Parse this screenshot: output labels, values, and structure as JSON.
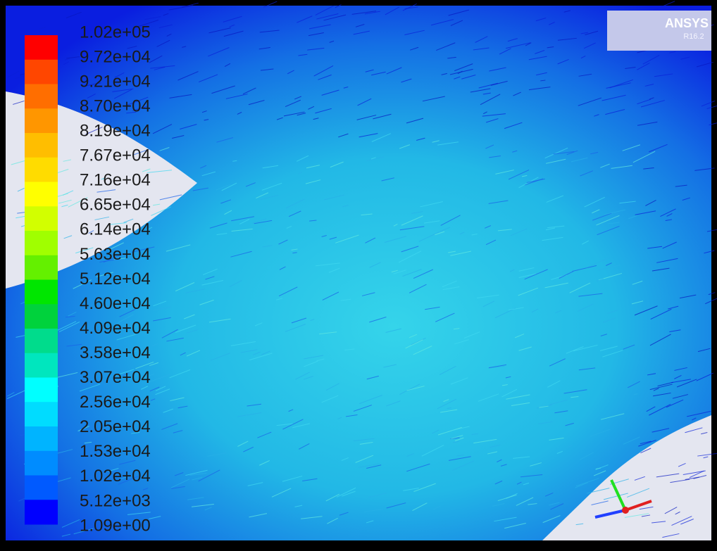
{
  "legend": {
    "labels": [
      "1.02e+05",
      "9.72e+04",
      "9.21e+04",
      "8.70e+04",
      "8.19e+04",
      "7.67e+04",
      "7.16e+04",
      "6.65e+04",
      "6.14e+04",
      "5.63e+04",
      "5.12e+04",
      "4.60e+04",
      "4.09e+04",
      "3.58e+04",
      "3.07e+04",
      "2.56e+04",
      "2.05e+04",
      "1.53e+04",
      "1.02e+04",
      "5.12e+03",
      "1.09e+00"
    ],
    "colors": [
      "#ff0000",
      "#ff4600",
      "#ff6e00",
      "#ff9600",
      "#ffbe00",
      "#ffdc00",
      "#ffff00",
      "#d2ff00",
      "#a0ff00",
      "#64f000",
      "#00e600",
      "#00d23c",
      "#00dc8c",
      "#00e6be",
      "#00ffff",
      "#00dcff",
      "#00b4ff",
      "#008cff",
      "#005aff",
      "#0000ff"
    ]
  },
  "logo": {
    "name": "ANSYS",
    "version": "R16.2"
  }
}
